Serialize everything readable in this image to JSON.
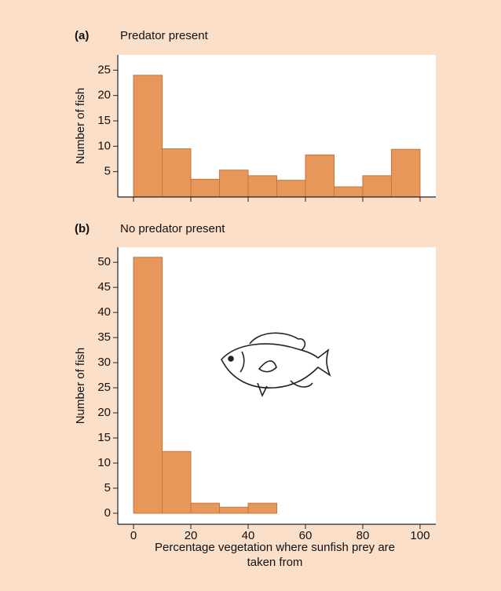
{
  "chart_data": [
    {
      "type": "histogram",
      "label": "(a)",
      "title": "Predator present",
      "ylabel": "Number of fish",
      "bins": [
        0,
        10,
        20,
        30,
        40,
        50,
        60,
        70,
        80,
        90,
        100
      ],
      "counts": [
        24,
        9.5,
        3.5,
        5.3,
        4.2,
        3.3,
        8.3,
        2,
        4.2,
        9.4
      ],
      "color": "#e8975a",
      "xlim": [
        -5.5,
        105.5
      ],
      "ylim": [
        0,
        28
      ],
      "yticks": [
        5,
        10,
        15,
        20,
        25
      ]
    },
    {
      "type": "histogram",
      "label": "(b)",
      "title": "No predator present",
      "ylabel": "Number of fish",
      "xlabel": "Percentage vegetation where sunfish prey are taken from",
      "bins": [
        0,
        10,
        20,
        30,
        40,
        50,
        60,
        70,
        80,
        90,
        100
      ],
      "counts": [
        51,
        12.3,
        2,
        1.2,
        2,
        0,
        0,
        0,
        0,
        0
      ],
      "color": "#e8975a",
      "xlim": [
        -5.5,
        105.5
      ],
      "ylim": [
        -2.2,
        53
      ],
      "yticks": [
        0,
        5,
        10,
        15,
        20,
        25,
        30,
        35,
        40,
        45,
        50
      ],
      "xticks": [
        0,
        20,
        40,
        60,
        80,
        100
      ]
    }
  ]
}
